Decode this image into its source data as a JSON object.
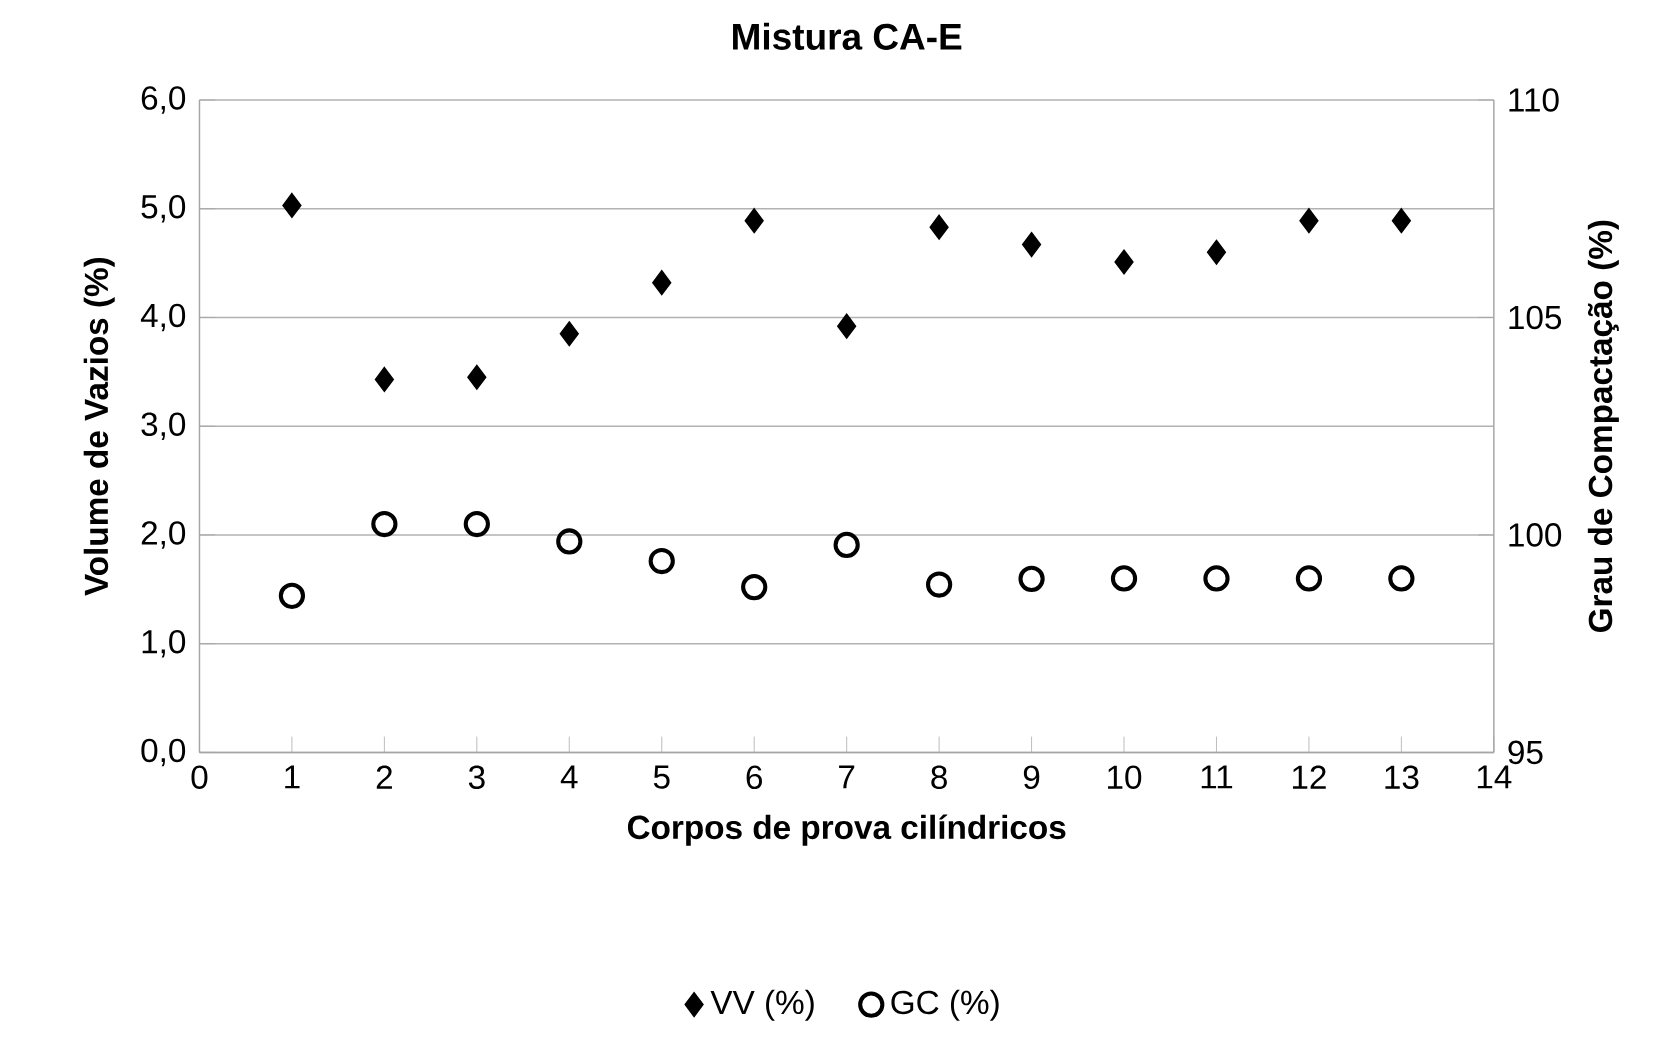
{
  "chart_data": {
    "type": "scatter",
    "title": "Mistura CA-E",
    "xlabel": "Corpos de prova cilíndricos",
    "ylabel": "Volume de Vazios (%)",
    "y2label": "Grau de Compactação (%)",
    "x": [
      1,
      2,
      3,
      4,
      5,
      6,
      7,
      8,
      9,
      10,
      11,
      12,
      13
    ],
    "series": [
      {
        "name": "VV (%)",
        "color": "#000000",
        "marker": "diamond",
        "values": [
          5.03,
          3.43,
          3.45,
          3.85,
          4.32,
          4.89,
          3.92,
          4.83,
          4.67,
          4.51,
          4.6,
          4.89,
          4.89
        ]
      },
      {
        "name": "GC (%)",
        "color": "#000000",
        "marker": "circle",
        "axis": "y2",
        "values": [
          98.6,
          100.25,
          100.25,
          99.85,
          99.4,
          98.8,
          99.77,
          98.86,
          98.99,
          99.0,
          99.0,
          99.0,
          99.0
        ]
      }
    ],
    "xlim": [
      0,
      14
    ],
    "xticks": [
      0,
      1,
      2,
      3,
      4,
      5,
      6,
      7,
      8,
      9,
      10,
      11,
      12,
      13,
      14
    ],
    "ylim": [
      0,
      6
    ],
    "yticks": [
      {
        "value": 0,
        "label": "0,0"
      },
      {
        "value": 1,
        "label": "1,0"
      },
      {
        "value": 2,
        "label": "2,0"
      },
      {
        "value": 3,
        "label": "3,0"
      },
      {
        "value": 4,
        "label": "4,0"
      },
      {
        "value": 5,
        "label": "5,0"
      },
      {
        "value": 6,
        "label": "6,0"
      }
    ],
    "y2lim": [
      95,
      110
    ],
    "y2ticks": [
      95,
      100,
      105,
      110
    ],
    "grid": "y",
    "legend": "bottom"
  }
}
